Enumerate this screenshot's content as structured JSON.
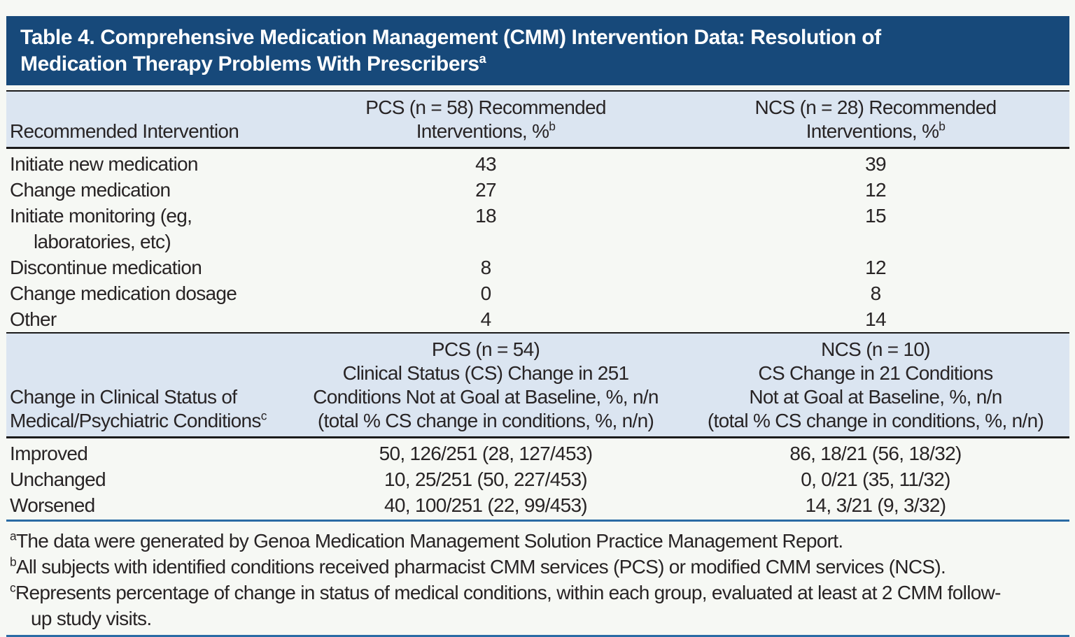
{
  "colors": {
    "page_bg": "#f6f8f4",
    "title_bar": "#17497a",
    "header_band": "#dbe5f1",
    "black_rule": "#1b1b1b",
    "blue_rule": "#2a6ba4",
    "text": "#282425"
  },
  "title": {
    "line1": "Table 4. Comprehensive Medication Management (CMM) Intervention Data: Resolution of",
    "line2": "Medication Therapy Problems With Prescribers",
    "sup": "a"
  },
  "section1": {
    "row_header": "Recommended Intervention",
    "pcs_header": {
      "line1": "PCS (n = 58) Recommended",
      "line2": "Interventions, %",
      "sup": "b"
    },
    "ncs_header": {
      "line1": "NCS (n = 28) Recommended",
      "line2": "Interventions, %",
      "sup": "b"
    },
    "rows": [
      {
        "label": "Initiate new medication",
        "pcs": "43",
        "ncs": "39"
      },
      {
        "label": "Change medication",
        "pcs": "27",
        "ncs": "12"
      },
      {
        "label": "Initiate monitoring (eg,",
        "label2": "laboratories, etc)",
        "pcs": "18",
        "ncs": "15"
      },
      {
        "label": "Discontinue medication",
        "pcs": "8",
        "ncs": "12"
      },
      {
        "label": "Change medication dosage",
        "pcs": "0",
        "ncs": "8"
      },
      {
        "label": "Other",
        "pcs": "4",
        "ncs": "14"
      }
    ]
  },
  "section2": {
    "row_header_line1": "Change in Clinical Status of",
    "row_header_line2": "Medical/Psychiatric Conditions",
    "row_header_sup": "c",
    "pcs_header_lines": [
      "PCS (n = 54)",
      "Clinical Status (CS) Change in 251",
      "Conditions Not at Goal at Baseline, %, n/n",
      "(total % CS change in conditions, %, n/n)"
    ],
    "ncs_header_lines": [
      "NCS (n = 10)",
      "CS Change in 21 Conditions",
      "Not at Goal at Baseline, %, n/n",
      "(total % CS change in conditions, %, n/n)"
    ],
    "rows": [
      {
        "label": "Improved",
        "pcs": "50, 126/251 (28, 127/453)",
        "ncs": "86, 18/21 (56, 18/32)"
      },
      {
        "label": "Unchanged",
        "pcs": "10, 25/251 (50, 227/453)",
        "ncs": "0, 0/21 (35, 11/32)"
      },
      {
        "label": "Worsened",
        "pcs": "40, 100/251 (22, 99/453)",
        "ncs": "14, 3/21 (9, 3/32)"
      }
    ]
  },
  "footnotes": [
    {
      "marker": "a",
      "text": "The data were generated by Genoa Medication Management Solution Practice Management Report."
    },
    {
      "marker": "b",
      "text": "All subjects with identified conditions received pharmacist CMM services (PCS) or modified CMM services (NCS)."
    },
    {
      "marker": "c",
      "text": "Represents percentage of change in status of medical conditions, within each group, evaluated at least at 2 CMM follow-",
      "text2": "up study visits."
    }
  ]
}
